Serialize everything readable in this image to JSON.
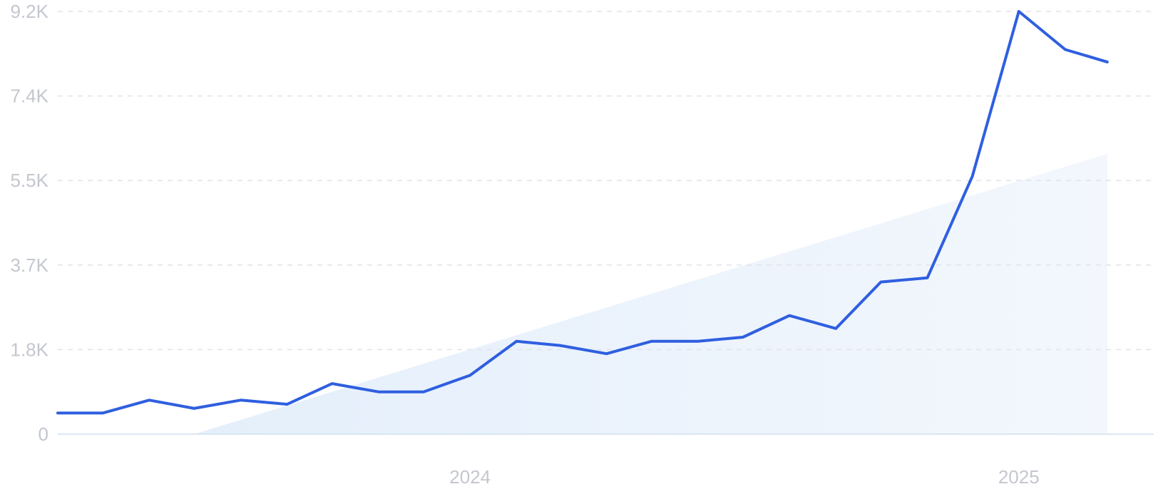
{
  "chart_data": {
    "type": "line",
    "title": "",
    "xlabel": "",
    "ylabel": "",
    "grid": true,
    "legend": "none",
    "ylim": [
      0,
      9200
    ],
    "yticks": [
      {
        "value": 0,
        "label": "0"
      },
      {
        "value": 1840,
        "label": "1.8K"
      },
      {
        "value": 3680,
        "label": "3.7K"
      },
      {
        "value": 5520,
        "label": "5.5K"
      },
      {
        "value": 7360,
        "label": "7.4K"
      },
      {
        "value": 9200,
        "label": "9.2K"
      }
    ],
    "xlim": [
      "2023-04-01",
      "2025-04-01"
    ],
    "xticks": [
      {
        "value": "2024-01-01",
        "label": "2024"
      },
      {
        "value": "2025-01-01",
        "label": "2025"
      }
    ],
    "series": [
      {
        "color": "#2f5fe0",
        "points": [
          {
            "x": "2023-04-01",
            "y": 460
          },
          {
            "x": "2023-05-01",
            "y": 460
          },
          {
            "x": "2023-06-01",
            "y": 740
          },
          {
            "x": "2023-07-01",
            "y": 560
          },
          {
            "x": "2023-08-01",
            "y": 740
          },
          {
            "x": "2023-09-01",
            "y": 650
          },
          {
            "x": "2023-10-01",
            "y": 1100
          },
          {
            "x": "2023-11-01",
            "y": 920
          },
          {
            "x": "2023-12-01",
            "y": 920
          },
          {
            "x": "2024-01-01",
            "y": 1280
          },
          {
            "x": "2024-02-01",
            "y": 2020
          },
          {
            "x": "2024-03-01",
            "y": 1930
          },
          {
            "x": "2024-04-01",
            "y": 1750
          },
          {
            "x": "2024-05-01",
            "y": 2020
          },
          {
            "x": "2024-06-01",
            "y": 2020
          },
          {
            "x": "2024-07-01",
            "y": 2110
          },
          {
            "x": "2024-08-01",
            "y": 2580
          },
          {
            "x": "2024-09-01",
            "y": 2300
          },
          {
            "x": "2024-10-01",
            "y": 3310
          },
          {
            "x": "2024-11-01",
            "y": 3400
          },
          {
            "x": "2024-12-01",
            "y": 5610
          },
          {
            "x": "2025-01-01",
            "y": 9200
          },
          {
            "x": "2025-02-01",
            "y": 8370
          },
          {
            "x": "2025-03-01",
            "y": 8100
          }
        ]
      }
    ],
    "trend": {
      "color": "#e3eefb",
      "points": [
        {
          "x": "2023-07-01",
          "y": 0
        },
        {
          "x": "2025-03-01",
          "y": 6100
        }
      ]
    }
  }
}
